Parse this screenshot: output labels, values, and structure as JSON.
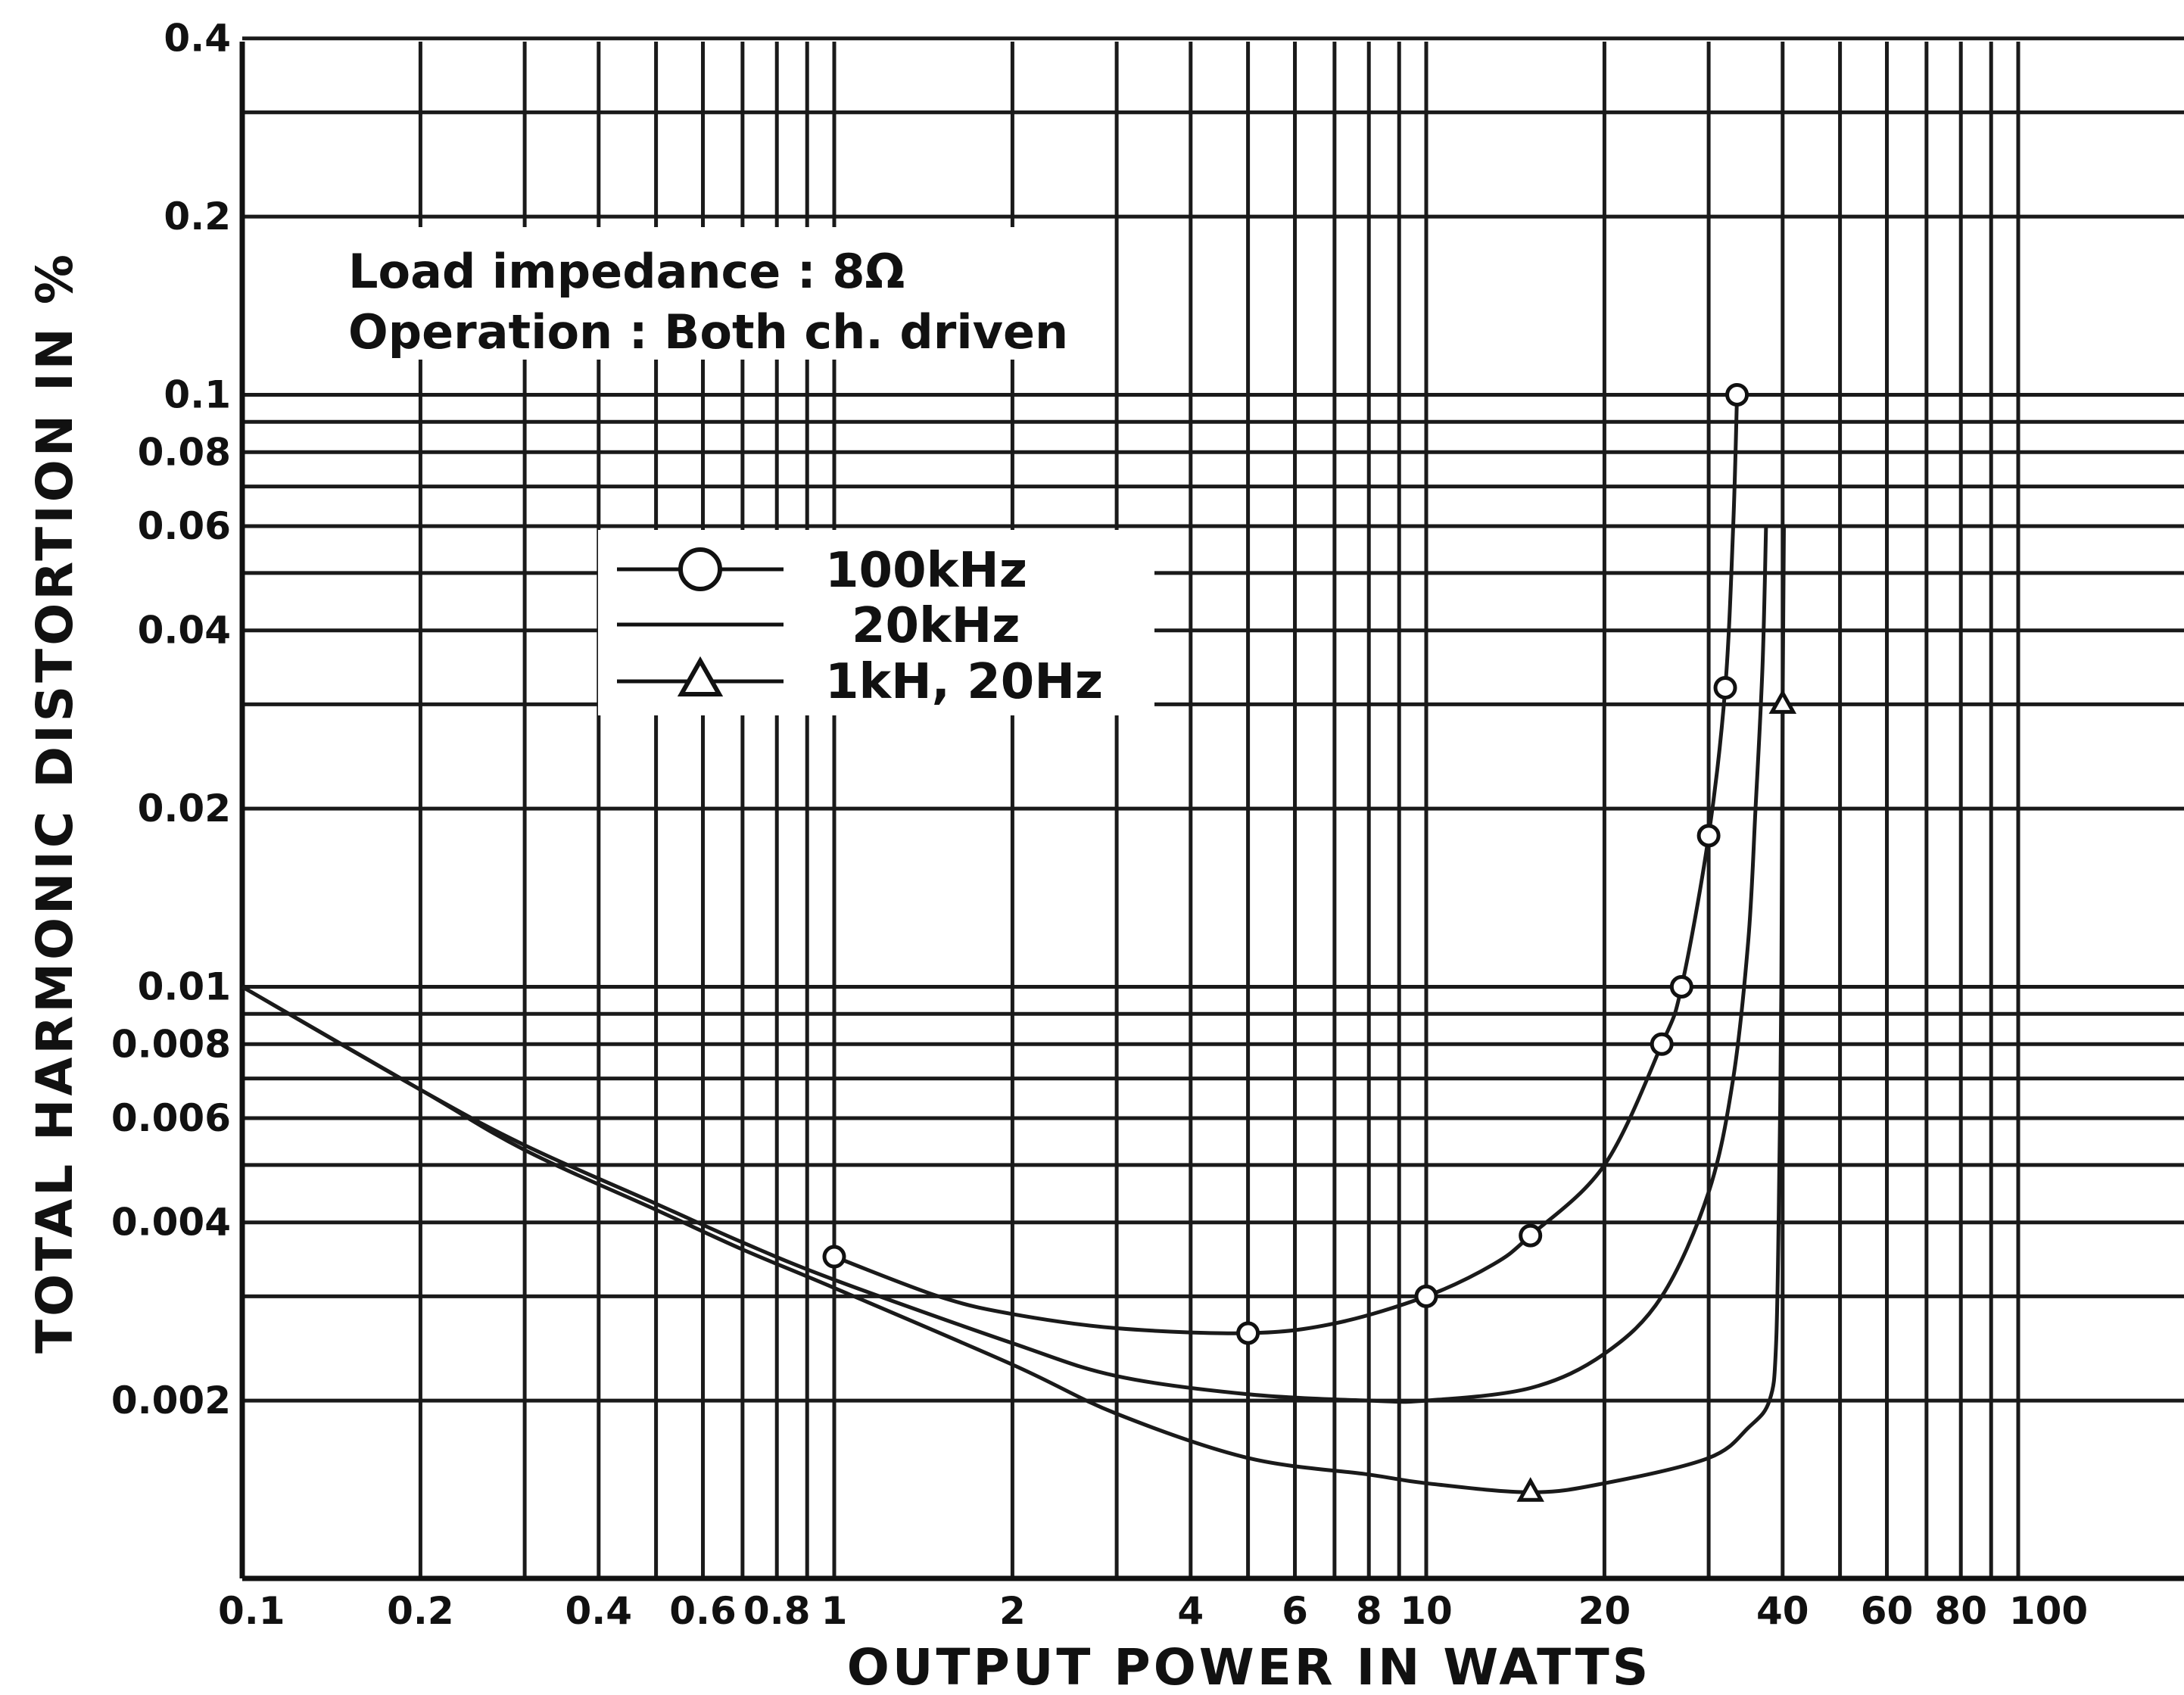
{
  "chart_data": {
    "type": "line",
    "title": "",
    "xlabel": "OUTPUT POWER IN WATTS",
    "ylabel": "TOTAL HARMONIC DISTORTION IN %",
    "xscale": "log",
    "yscale": "log",
    "xlim": [
      0.1,
      100
    ],
    "ylim": [
      0.001,
      0.4
    ],
    "grid": true,
    "legend_position": "upper-left",
    "x_tick_labels": [
      {
        "value": 0.1,
        "label": "0.1"
      },
      {
        "value": 0.2,
        "label": "0.2"
      },
      {
        "value": 0.4,
        "label": "0.4"
      },
      {
        "value": 0.6,
        "label": "0.6"
      },
      {
        "value": 0.8,
        "label": "0.8"
      },
      {
        "value": 1,
        "label": "1"
      },
      {
        "value": 2,
        "label": "2"
      },
      {
        "value": 4,
        "label": "4"
      },
      {
        "value": 6,
        "label": "6"
      },
      {
        "value": 8,
        "label": "8"
      },
      {
        "value": 10,
        "label": "10"
      },
      {
        "value": 20,
        "label": "20"
      },
      {
        "value": 40,
        "label": "40"
      },
      {
        "value": 60,
        "label": "60"
      },
      {
        "value": 80,
        "label": "80"
      },
      {
        "value": 100,
        "label": "100"
      }
    ],
    "y_tick_labels": [
      {
        "value": 0.4,
        "label": "0.4"
      },
      {
        "value": 0.2,
        "label": "0.2"
      },
      {
        "value": 0.1,
        "label": "0.1"
      },
      {
        "value": 0.08,
        "label": "0.08"
      },
      {
        "value": 0.06,
        "label": "0.06"
      },
      {
        "value": 0.04,
        "label": "0.04"
      },
      {
        "value": 0.02,
        "label": "0.02"
      },
      {
        "value": 0.01,
        "label": "0.01"
      },
      {
        "value": 0.008,
        "label": "0.008"
      },
      {
        "value": 0.006,
        "label": "0.006"
      },
      {
        "value": 0.004,
        "label": "0.004"
      },
      {
        "value": 0.002,
        "label": "0.002"
      }
    ],
    "x_grid": [
      0.1,
      0.2,
      0.3,
      0.4,
      0.5,
      0.6,
      0.7,
      0.8,
      0.9,
      1,
      2,
      3,
      4,
      5,
      6,
      7,
      8,
      9,
      10,
      20,
      30,
      40,
      50,
      60,
      70,
      80,
      90,
      100
    ],
    "y_grid": [
      0.001,
      0.002,
      0.003,
      0.004,
      0.005,
      0.006,
      0.007,
      0.008,
      0.009,
      0.01,
      0.02,
      0.03,
      0.04,
      0.05,
      0.06,
      0.07,
      0.08,
      0.09,
      0.1,
      0.2,
      0.3,
      0.4
    ],
    "annotations": [
      "Load impedance : 8Ω",
      "Operation : Both ch. driven"
    ],
    "series": [
      {
        "name": "100kHz",
        "marker": "circle",
        "points": [
          [
            1,
            0.0035
          ],
          [
            1.5,
            0.003
          ],
          [
            2,
            0.0028
          ],
          [
            3,
            0.00265
          ],
          [
            5,
            0.0026
          ],
          [
            7,
            0.0027
          ],
          [
            10,
            0.003
          ],
          [
            13,
            0.0034
          ],
          [
            15,
            0.0038
          ],
          [
            20,
            0.005
          ],
          [
            25,
            0.008
          ],
          [
            27,
            0.01
          ],
          [
            30,
            0.018
          ],
          [
            32,
            0.032
          ],
          [
            33,
            0.06
          ],
          [
            33.5,
            0.1
          ]
        ],
        "marked_points": [
          [
            1,
            0.0035
          ],
          [
            5,
            0.0026
          ],
          [
            10,
            0.003
          ],
          [
            15,
            0.0038
          ],
          [
            25,
            0.008
          ],
          [
            27,
            0.01
          ],
          [
            30,
            0.018
          ],
          [
            32,
            0.032
          ],
          [
            33.5,
            0.1
          ]
        ]
      },
      {
        "name": "20kHz",
        "marker": "none",
        "points": [
          [
            0.1,
            0.01
          ],
          [
            0.2,
            0.0067
          ],
          [
            0.3,
            0.0054
          ],
          [
            0.5,
            0.0043
          ],
          [
            0.7,
            0.0037
          ],
          [
            1,
            0.0032
          ],
          [
            2,
            0.0025
          ],
          [
            3,
            0.0022
          ],
          [
            5,
            0.00205
          ],
          [
            8,
            0.002
          ],
          [
            10,
            0.002
          ],
          [
            15,
            0.0021
          ],
          [
            20,
            0.0024
          ],
          [
            25,
            0.003
          ],
          [
            30,
            0.0045
          ],
          [
            33,
            0.007
          ],
          [
            35,
            0.012
          ],
          [
            36,
            0.02
          ],
          [
            37,
            0.035
          ],
          [
            37.5,
            0.06
          ]
        ],
        "marked_points": []
      },
      {
        "name": "1kH, 20Hz",
        "marker": "triangle",
        "points": [
          [
            0.1,
            0.01
          ],
          [
            0.2,
            0.0067
          ],
          [
            0.3,
            0.0053
          ],
          [
            0.5,
            0.0042
          ],
          [
            0.7,
            0.0036
          ],
          [
            1,
            0.0031
          ],
          [
            2,
            0.0023
          ],
          [
            3,
            0.0019
          ],
          [
            5,
            0.0016
          ],
          [
            8,
            0.0015
          ],
          [
            10,
            0.00145
          ],
          [
            15,
            0.0014
          ],
          [
            20,
            0.00145
          ],
          [
            30,
            0.0016
          ],
          [
            35,
            0.0018
          ],
          [
            38,
            0.002
          ],
          [
            39,
            0.0025
          ],
          [
            39.5,
            0.005
          ],
          [
            39.8,
            0.01
          ],
          [
            40,
            0.03
          ],
          [
            40.2,
            0.06
          ]
        ],
        "marked_points": [
          [
            15,
            0.0014
          ],
          [
            40,
            0.03
          ]
        ]
      }
    ]
  }
}
